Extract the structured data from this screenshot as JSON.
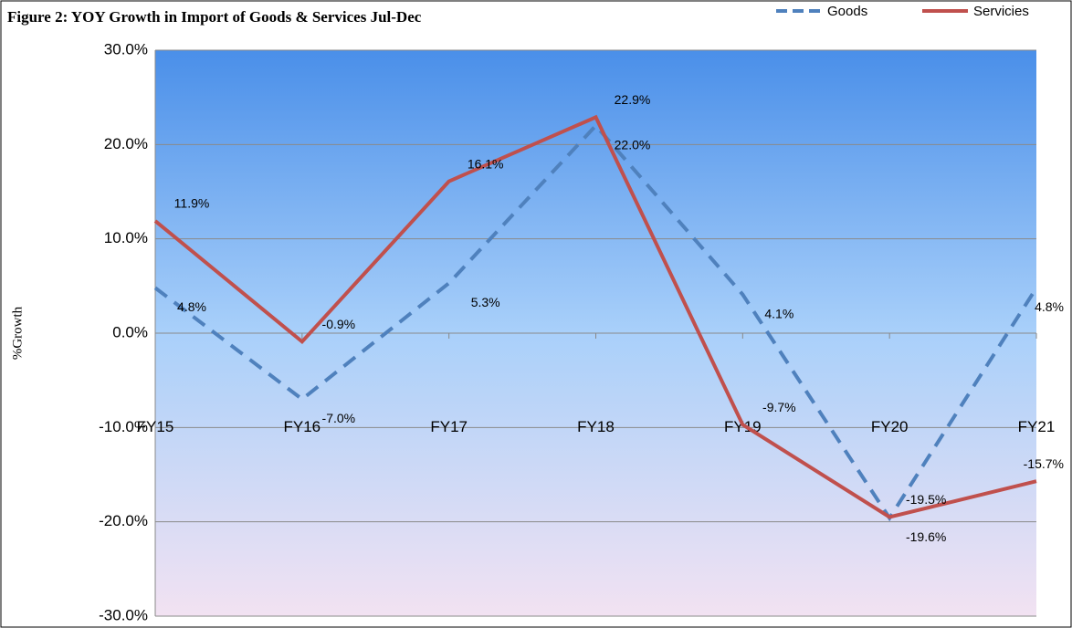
{
  "chart_data": {
    "type": "line",
    "title": "Figure 2: YOY Growth in Import of Goods & Services Jul-Dec",
    "y_label": "%Growth",
    "categories": [
      "FY15",
      "FY16",
      "FY17",
      "FY18",
      "FY19",
      "FY20",
      "FY21"
    ],
    "series": [
      {
        "name": "Goods",
        "color": "#4f81bd",
        "dashed": true,
        "values": [
          4.8,
          -7.0,
          5.3,
          22.0,
          4.1,
          -19.6,
          4.8
        ],
        "value_labels": [
          "4.8%",
          "-7.0%",
          "5.3%",
          "22.0%",
          "4.1%",
          "-19.6%",
          "4.8%"
        ]
      },
      {
        "name": "Servicies",
        "color": "#c0504d",
        "dashed": false,
        "values": [
          11.9,
          -0.9,
          16.1,
          22.9,
          -9.7,
          -19.5,
          -15.7
        ],
        "value_labels": [
          "11.9%",
          "-0.9%",
          "16.1%",
          "22.9%",
          "-9.7%",
          "-19.5%",
          "-15.7%"
        ]
      }
    ],
    "ylim": [
      -30,
      30
    ],
    "yticks": [
      {
        "value": -30,
        "label": "-30.0%"
      },
      {
        "value": -20,
        "label": "-20.0%"
      },
      {
        "value": -10,
        "label": "-10.0%"
      },
      {
        "value": 0,
        "label": "0.0%"
      },
      {
        "value": 10,
        "label": "10.0%"
      },
      {
        "value": 20,
        "label": "20.0%"
      },
      {
        "value": 30,
        "label": "30.0%"
      }
    ],
    "grid": true,
    "legend": "top-right"
  }
}
